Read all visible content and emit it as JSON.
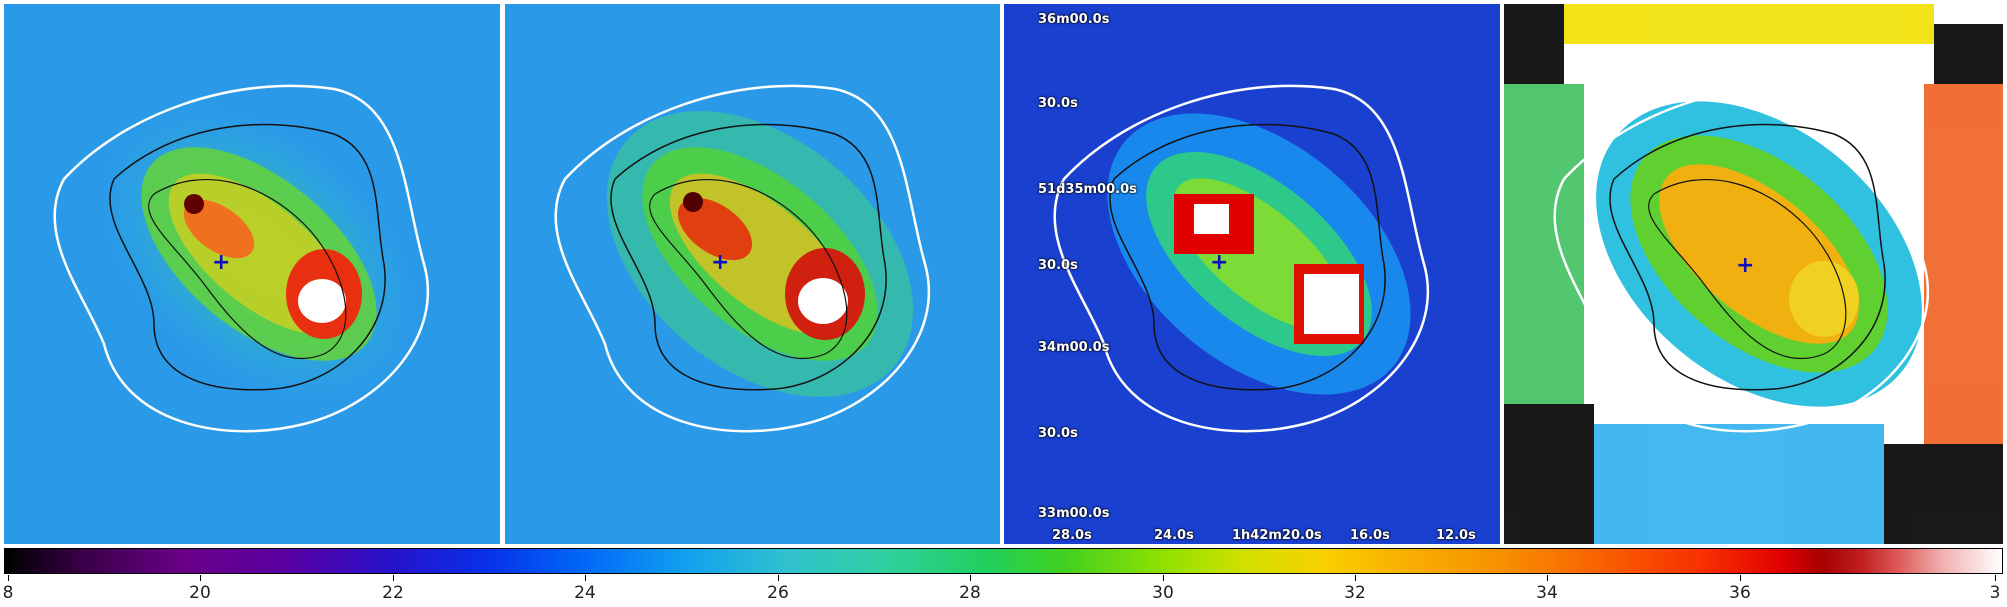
{
  "panels": [
    {
      "name": "panel-1"
    },
    {
      "name": "panel-2"
    },
    {
      "name": "panel-3",
      "dec_labels": [
        "36m00.0s",
        "30.0s",
        "51d35m00.0s",
        "30.0s",
        "34m00.0s",
        "30.0s",
        "33m00.0s"
      ],
      "ra_labels": [
        "28.0s",
        "24.0s",
        "1h42m20.0s",
        "16.0s",
        "12.0s"
      ]
    },
    {
      "name": "panel-4"
    }
  ],
  "colorbar": {
    "ticks": [
      "8",
      "20",
      "22",
      "24",
      "26",
      "28",
      "30",
      "32",
      "34",
      "36",
      "3"
    ]
  },
  "colors": {
    "background_field": "#1e7fe0",
    "cross_marker": "#1010c0",
    "white_contour": "#ffffff",
    "black_contour": "#111111"
  }
}
